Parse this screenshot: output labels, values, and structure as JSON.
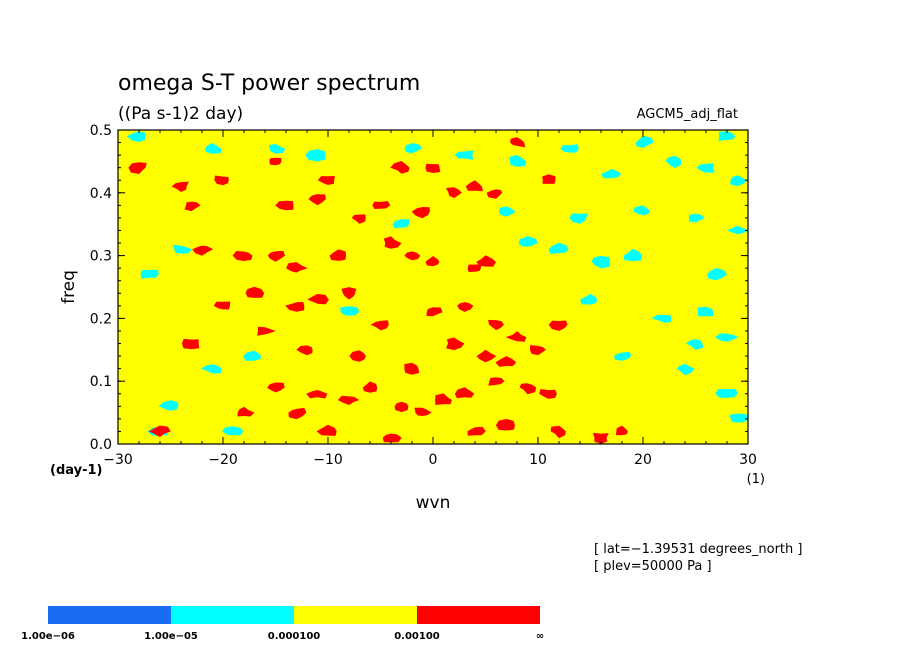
{
  "chart_data": {
    "type": "heatmap",
    "title": "omega S-T power spectrum",
    "subtitle": "((Pa s-1)2 day)",
    "dataset": "AGCM5_adj_flat",
    "xlabel": "wvn",
    "xunit": "(1)",
    "ylabel": "freq",
    "yunit": "(day-1)",
    "xlim": [
      -30,
      30
    ],
    "ylim": [
      0,
      0.5
    ],
    "x_ticks": [
      -30,
      -20,
      -10,
      0,
      10,
      20,
      30
    ],
    "x_tick_labels": [
      "−30",
      "−20",
      "−10",
      "0",
      "10",
      "20",
      "30"
    ],
    "y_ticks": [
      0,
      0.1,
      0.2,
      0.3,
      0.4,
      0.5
    ],
    "y_tick_labels": [
      "0.0",
      "0.1",
      "0.2",
      "0.3",
      "0.4",
      "0.5"
    ],
    "annotations": [
      "[ lat=−1.39531 degrees_north ]",
      "[ plev=50000 Pa ]"
    ],
    "color_levels": [
      {
        "label_low": "1.00e−06",
        "color": "#1a6cf0"
      },
      {
        "label_low": "1.00e−05",
        "color": "#00ffff"
      },
      {
        "label_low": "0.000100",
        "color": "#ffff00"
      },
      {
        "label_low": "0.00100",
        "color": "#ff0000"
      }
    ],
    "colorbar_end_label": "∞",
    "background_level_color": "#ffff00",
    "red_patches": [
      [
        -28,
        0.44
      ],
      [
        -24,
        0.41
      ],
      [
        -23,
        0.38
      ],
      [
        -20,
        0.42
      ],
      [
        -15,
        0.45
      ],
      [
        -14,
        0.38
      ],
      [
        -11,
        0.39
      ],
      [
        -10,
        0.42
      ],
      [
        -7,
        0.36
      ],
      [
        -5,
        0.38
      ],
      [
        -3,
        0.44
      ],
      [
        -1,
        0.37
      ],
      [
        0,
        0.44
      ],
      [
        2,
        0.4
      ],
      [
        4,
        0.41
      ],
      [
        6,
        0.4
      ],
      [
        8,
        0.48
      ],
      [
        11,
        0.42
      ],
      [
        -22,
        0.31
      ],
      [
        -18,
        0.3
      ],
      [
        -15,
        0.3
      ],
      [
        -13,
        0.28
      ],
      [
        -9,
        0.3
      ],
      [
        -4,
        0.32
      ],
      [
        -2,
        0.3
      ],
      [
        0,
        0.29
      ],
      [
        4,
        0.28
      ],
      [
        5,
        0.29
      ],
      [
        -20,
        0.22
      ],
      [
        -17,
        0.24
      ],
      [
        -13,
        0.22
      ],
      [
        -11,
        0.23
      ],
      [
        -8,
        0.24
      ],
      [
        -5,
        0.19
      ],
      [
        0,
        0.21
      ],
      [
        3,
        0.22
      ],
      [
        6,
        0.19
      ],
      [
        8,
        0.17
      ],
      [
        10,
        0.15
      ],
      [
        12,
        0.19
      ],
      [
        -23,
        0.16
      ],
      [
        -12,
        0.15
      ],
      [
        -7,
        0.14
      ],
      [
        5,
        0.14
      ],
      [
        7,
        0.13
      ],
      [
        -15,
        0.09
      ],
      [
        -11,
        0.08
      ],
      [
        -8,
        0.07
      ],
      [
        -6,
        0.09
      ],
      [
        -3,
        0.06
      ],
      [
        -1,
        0.05
      ],
      [
        1,
        0.07
      ],
      [
        3,
        0.08
      ],
      [
        6,
        0.1
      ],
      [
        9,
        0.09
      ],
      [
        11,
        0.08
      ],
      [
        -18,
        0.05
      ],
      [
        -13,
        0.05
      ],
      [
        -4,
        0.01
      ],
      [
        4,
        0.02
      ],
      [
        7,
        0.03
      ],
      [
        12,
        0.02
      ],
      [
        16,
        0.01
      ],
      [
        18,
        0.02
      ],
      [
        -26,
        0.02
      ],
      [
        -10,
        0.02
      ],
      [
        -16,
        0.18
      ],
      [
        -2,
        0.12
      ],
      [
        2,
        0.16
      ]
    ],
    "cyan_patches": [
      [
        13,
        0.47
      ],
      [
        17,
        0.43
      ],
      [
        20,
        0.48
      ],
      [
        23,
        0.45
      ],
      [
        26,
        0.44
      ],
      [
        28,
        0.49
      ],
      [
        29,
        0.42
      ],
      [
        -28,
        0.49
      ],
      [
        -21,
        0.47
      ],
      [
        -11,
        0.46
      ],
      [
        -2,
        0.47
      ],
      [
        3,
        0.46
      ],
      [
        8,
        0.45
      ],
      [
        14,
        0.36
      ],
      [
        20,
        0.37
      ],
      [
        25,
        0.36
      ],
      [
        29,
        0.34
      ],
      [
        -27,
        0.27
      ],
      [
        -24,
        0.31
      ],
      [
        -3,
        0.35
      ],
      [
        12,
        0.31
      ],
      [
        16,
        0.29
      ],
      [
        19,
        0.3
      ],
      [
        27,
        0.27
      ],
      [
        15,
        0.23
      ],
      [
        22,
        0.2
      ],
      [
        26,
        0.21
      ],
      [
        28,
        0.17
      ],
      [
        18,
        0.14
      ],
      [
        24,
        0.12
      ],
      [
        25,
        0.16
      ],
      [
        28,
        0.08
      ],
      [
        29,
        0.04
      ],
      [
        -25,
        0.06
      ],
      [
        -26,
        0.02
      ],
      [
        -19,
        0.02
      ],
      [
        -8,
        0.21
      ],
      [
        -21,
        0.12
      ],
      [
        -17,
        0.14
      ],
      [
        7,
        0.37
      ],
      [
        -15,
        0.47
      ],
      [
        9,
        0.32
      ]
    ]
  }
}
